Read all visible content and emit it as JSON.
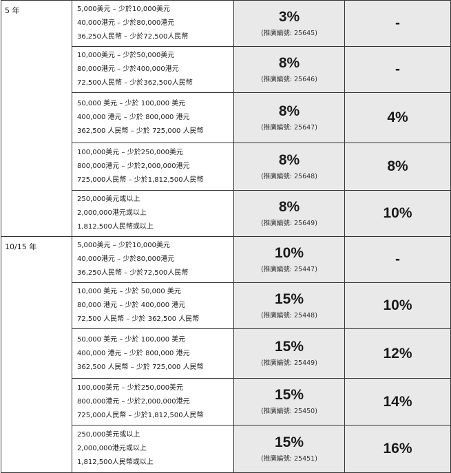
{
  "groups": [
    {
      "term": "5 年",
      "rows": [
        {
          "lines": [
            "5,000美元 – 少於10,000美元",
            "40,000港元 – 少於80,000港元",
            "36,250人民幣 – 少於72,500人民幣"
          ],
          "rate": "3%",
          "code": "(推廣編號: 25645)",
          "bonus": "-"
        },
        {
          "lines": [
            "10,000美元 – 少於50,000美元",
            "80,000港元 – 少於400,000港元",
            "72,500人民幣 – 少於362,500人民幣"
          ],
          "rate": "8%",
          "code": "(推廣編號: 25646)",
          "bonus": "-"
        },
        {
          "lines": [
            "50,000 美元 – 少於 100,000 美元",
            "400,000 港元 – 少於 800,000 港元",
            "362,500 人民幣 – 少於 725,000 人民幣"
          ],
          "rate": "8%",
          "code": "(推廣編號: 25647)",
          "bonus": "4%"
        },
        {
          "lines": [
            "100,000美元 – 少於250,000美元",
            "800,000港元 – 少於2,000,000港元",
            "725,000人民幣 – 少於1,812,500人民幣"
          ],
          "rate": "8%",
          "code": "(推廣編號: 25648)",
          "bonus": "8%"
        },
        {
          "lines": [
            "250,000美元或以上",
            "2,000,000港元或以上",
            "1,812,500人民幣或以上"
          ],
          "rate": "8%",
          "code": "(推廣編號: 25649)",
          "bonus": "10%"
        }
      ]
    },
    {
      "term": "10/15 年",
      "rows": [
        {
          "lines": [
            "5,000美元 – 少於10,000美元",
            "40,000港元 – 少於80,000港元",
            "36,250人民幣 – 少於72,500人民幣"
          ],
          "rate": "10%",
          "code": "(推廣編號: 25447)",
          "bonus": "-"
        },
        {
          "lines": [
            "10,000 美元 – 少於 50,000 美元",
            "80,000 港元 – 少於 400,000 港元",
            "72,500 人民幣 – 少於 362,500 人民幣"
          ],
          "rate": "15%",
          "code": "(推廣編號: 25448)",
          "bonus": "10%"
        },
        {
          "lines": [
            "50,000 美元 – 少於 100,000 美元",
            "400,000 港元 – 少於 800,000 港元",
            "362,500 人民幣 – 少於 725,000 人民幣"
          ],
          "rate": "15%",
          "code": "(推廣編號: 25449)",
          "bonus": "12%"
        },
        {
          "lines": [
            "100,000美元 – 少於250,000美元",
            "800,000港元 – 少於2,000,000港元",
            "725,000人民幣 – 少於1,812,500人民幣"
          ],
          "rate": "15%",
          "code": "(推廣編號: 25450)",
          "bonus": "14%"
        },
        {
          "lines": [
            "250,000美元或以上",
            "2,000,000港元或以上",
            "1,812,500人民幣或以上"
          ],
          "rate": "15%",
          "code": "(推廣編號: 25451)",
          "bonus": "16%"
        }
      ]
    }
  ]
}
